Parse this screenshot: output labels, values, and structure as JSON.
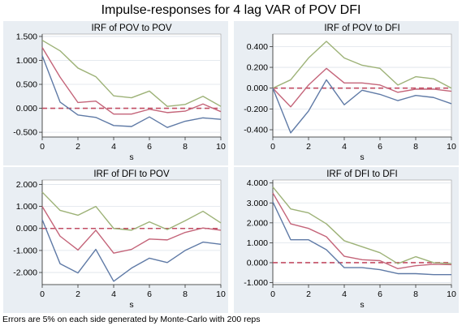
{
  "figure": {
    "title": "Impulse-responses for 4 lag VAR of POV DFI",
    "note": "Errors are 5% on each side generated by Monte-Carlo with 200 reps"
  },
  "colors": {
    "background": "#e9eef3",
    "plot": "#ffffff",
    "lower": "#5f7aa6",
    "mid": "#c46479",
    "upper": "#9db277",
    "zero": "#c24d63"
  },
  "chart_data": [
    {
      "type": "line",
      "title": "IRF of POV to POV",
      "xlabel": "s",
      "x": [
        0,
        1,
        2,
        3,
        4,
        5,
        6,
        7,
        8,
        9,
        10
      ],
      "xticks": [
        "0",
        "2",
        "4",
        "6",
        "8",
        "10"
      ],
      "xlim": [
        0,
        10
      ],
      "ylim": [
        -0.6,
        1.55
      ],
      "yticks": [
        -0.5,
        0,
        0.5,
        1.0,
        1.5
      ],
      "ytick_labels": [
        "-0.500",
        "0.000",
        "0.500",
        "1.000",
        "1.500"
      ],
      "series": [
        {
          "role": "upper",
          "values": [
            1.42,
            1.2,
            0.84,
            0.66,
            0.26,
            0.22,
            0.36,
            0.04,
            0.08,
            0.25,
            0.04
          ]
        },
        {
          "role": "mid",
          "values": [
            1.27,
            0.65,
            0.12,
            0.15,
            -0.12,
            -0.12,
            -0.02,
            -0.09,
            -0.06,
            0.09,
            -0.07
          ]
        },
        {
          "role": "lower",
          "values": [
            1.1,
            0.13,
            -0.14,
            -0.19,
            -0.36,
            -0.38,
            -0.18,
            -0.4,
            -0.27,
            -0.2,
            -0.23
          ]
        }
      ],
      "zero_line": 0
    },
    {
      "type": "line",
      "title": "IRF of POV to DFI",
      "xlabel": "s",
      "x": [
        0,
        1,
        2,
        3,
        4,
        5,
        6,
        7,
        8,
        9,
        10
      ],
      "xticks": [
        "0",
        "2",
        "4",
        "6",
        "8",
        "10"
      ],
      "xlim": [
        0,
        10
      ],
      "ylim": [
        -0.47,
        0.52
      ],
      "yticks": [
        -0.4,
        -0.2,
        0,
        0.2,
        0.4
      ],
      "ytick_labels": [
        "-0.400",
        "-0.200",
        "0.000",
        "0.200",
        "0.400"
      ],
      "series": [
        {
          "role": "upper",
          "values": [
            0.0,
            0.08,
            0.29,
            0.45,
            0.29,
            0.22,
            0.19,
            0.03,
            0.11,
            0.09,
            0.0
          ]
        },
        {
          "role": "mid",
          "values": [
            0.0,
            -0.18,
            0.03,
            0.19,
            0.05,
            0.05,
            0.03,
            -0.04,
            -0.01,
            -0.01,
            -0.03
          ]
        },
        {
          "role": "lower",
          "values": [
            0.0,
            -0.43,
            -0.22,
            0.08,
            -0.16,
            -0.02,
            -0.06,
            -0.12,
            -0.07,
            -0.09,
            -0.15
          ]
        }
      ],
      "zero_line": 0
    },
    {
      "type": "line",
      "title": "IRF of DFI to POV",
      "xlabel": "s",
      "x": [
        0,
        1,
        2,
        3,
        4,
        5,
        6,
        7,
        8,
        9,
        10
      ],
      "xticks": [
        "0",
        "2",
        "4",
        "6",
        "8",
        "10"
      ],
      "xlim": [
        0,
        10
      ],
      "ylim": [
        -2.55,
        2.2
      ],
      "yticks": [
        -2,
        -1,
        0,
        1,
        2
      ],
      "ytick_labels": [
        "-2.000",
        "-1.000",
        "0.000",
        "1.000",
        "2.000"
      ],
      "series": [
        {
          "role": "upper",
          "values": [
            1.65,
            0.82,
            0.6,
            1.0,
            0.0,
            -0.08,
            0.3,
            -0.05,
            0.35,
            0.78,
            0.25
          ]
        },
        {
          "role": "mid",
          "values": [
            1.0,
            -0.35,
            -0.98,
            -0.08,
            -1.12,
            -0.95,
            -0.48,
            -0.52,
            -0.18,
            0.02,
            -0.08
          ]
        },
        {
          "role": "lower",
          "values": [
            0.4,
            -1.6,
            -2.02,
            -0.95,
            -2.4,
            -1.8,
            -1.35,
            -1.55,
            -1.0,
            -0.62,
            -0.72
          ]
        }
      ],
      "zero_line": 0
    },
    {
      "type": "line",
      "title": "IRF of DFI to DFI",
      "xlabel": "s",
      "x": [
        0,
        1,
        2,
        3,
        4,
        5,
        6,
        7,
        8,
        9,
        10
      ],
      "xticks": [
        "0",
        "2",
        "4",
        "6",
        "8",
        "10"
      ],
      "xlim": [
        0,
        10
      ],
      "ylim": [
        -1.1,
        4.15
      ],
      "yticks": [
        -1,
        0,
        1,
        2,
        3,
        4
      ],
      "ytick_labels": [
        "-1.000",
        "0.000",
        "1.000",
        "2.000",
        "3.000",
        "4.000"
      ],
      "series": [
        {
          "role": "upper",
          "values": [
            3.8,
            2.7,
            2.5,
            1.95,
            1.1,
            0.8,
            0.5,
            -0.05,
            0.3,
            0.0,
            -0.05
          ]
        },
        {
          "role": "mid",
          "values": [
            3.5,
            1.95,
            1.72,
            1.3,
            0.32,
            0.15,
            0.1,
            -0.3,
            -0.15,
            -0.08,
            -0.1
          ]
        },
        {
          "role": "lower",
          "values": [
            3.05,
            1.15,
            1.15,
            0.65,
            -0.25,
            -0.25,
            -0.35,
            -0.55,
            -0.55,
            -0.6,
            -0.6
          ]
        }
      ],
      "zero_line": 0
    }
  ]
}
